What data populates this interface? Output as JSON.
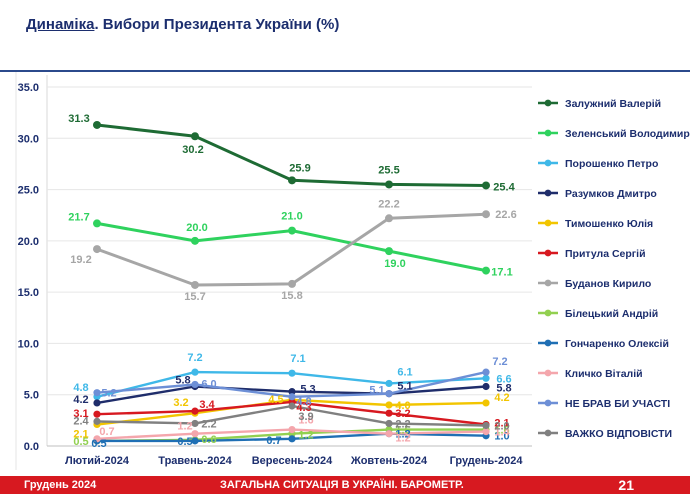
{
  "header": {
    "title_highlight": "Динаміка",
    "title_rest": ". Вибори Президента України (%)"
  },
  "footer": {
    "date": "Грудень 2024",
    "section": "ЗАГАЛЬНА СИТУАЦІЯ В УКРАЇНІ. БАРОМЕТР.",
    "page": "21"
  },
  "chart_data": {
    "type": "line",
    "title": "Динаміка. Вибори Президента України (%)",
    "xlabel": "",
    "ylabel": "",
    "ylim": [
      0,
      35
    ],
    "yticks": [
      "0.0",
      "5.0",
      "10.0",
      "15.0",
      "20.0",
      "25.0",
      "30.0",
      "35.0"
    ],
    "categories": [
      "Лютий-2024",
      "Травень-2024",
      "Вересень-2024",
      "Жовтень-2024",
      "Грудень-2024"
    ],
    "legend_position": "right",
    "series": [
      {
        "name": "Залужний Валерій",
        "color": "#1e6b34",
        "values": [
          31.3,
          30.2,
          25.9,
          25.5,
          25.4
        ],
        "labels": [
          "31.3",
          "30.2",
          "25.9",
          "25.5",
          "25.4"
        ]
      },
      {
        "name": "Зеленський Володимир",
        "color": "#2fd25e",
        "values": [
          21.7,
          20.0,
          21.0,
          19.0,
          17.1
        ],
        "labels": [
          "21.7",
          "20.0",
          "21.0",
          "19.0",
          "17.1"
        ]
      },
      {
        "name": "Порошенко Петро",
        "color": "#3fb8e8",
        "values": [
          4.8,
          7.2,
          7.1,
          6.1,
          6.6
        ],
        "labels": [
          "4.8",
          "7.2",
          "7.1",
          "6.1",
          "6.6"
        ]
      },
      {
        "name": "Разумков Дмитро",
        "color": "#1f2d6b",
        "values": [
          4.2,
          5.8,
          5.3,
          5.1,
          5.8
        ],
        "labels": [
          "4.2",
          "5.8",
          "5.3",
          "5.1",
          "5.8"
        ]
      },
      {
        "name": "Тимошенко Юлія",
        "color": "#f2c500",
        "values": [
          2.1,
          3.2,
          4.5,
          4.0,
          4.2
        ],
        "labels": [
          "2.1",
          "3.2",
          "4.5",
          "4.0",
          "4.2"
        ]
      },
      {
        "name": "Притула Сергій",
        "color": "#d71920",
        "values": [
          3.1,
          3.4,
          4.3,
          3.2,
          2.1
        ],
        "labels": [
          "3.1",
          "3.4",
          "4.3",
          "3.2",
          "2.1"
        ]
      },
      {
        "name": "Буданов Кирило",
        "color": "#a6a6a6",
        "values": [
          19.2,
          15.7,
          15.8,
          22.2,
          22.6
        ],
        "labels": [
          "19.2",
          "15.7",
          "15.8",
          "22.2",
          "22.6"
        ]
      },
      {
        "name": "Білецький Андрій",
        "color": "#92d050",
        "values": [
          0.5,
          0.6,
          1.2,
          1.6,
          1.6
        ],
        "labels": [
          "0.5",
          "0.6",
          "1.2",
          "1.6",
          "1.6"
        ]
      },
      {
        "name": "Гончаренко Олексій",
        "color": "#1f6fb4",
        "values": [
          0.5,
          0.5,
          0.7,
          1.2,
          1.0
        ],
        "labels": [
          "0.5",
          "0.5",
          "0.7",
          "1.2",
          "1.0"
        ]
      },
      {
        "name": "Кличко Віталій",
        "color": "#f4a6ac",
        "values": [
          0.7,
          1.2,
          1.6,
          1.2,
          1.4
        ],
        "labels": [
          "0.7",
          "1.2",
          "1.6",
          "1.2",
          "1.4"
        ]
      },
      {
        "name": "НЕ БРАВ БИ УЧАСТІ",
        "color": "#6d8fd6",
        "values": [
          5.2,
          6.0,
          4.8,
          5.1,
          7.2
        ],
        "labels": [
          "5.2",
          "6.0",
          "4.8",
          "5.1",
          "7.2"
        ]
      },
      {
        "name": "ВАЖКО ВІДПОВІСТИ",
        "color": "#808080",
        "values": [
          2.4,
          2.2,
          3.9,
          2.2,
          2.0
        ],
        "labels": [
          "2.4",
          "2.2",
          "3.9",
          "2.2",
          "2.0"
        ]
      }
    ]
  }
}
